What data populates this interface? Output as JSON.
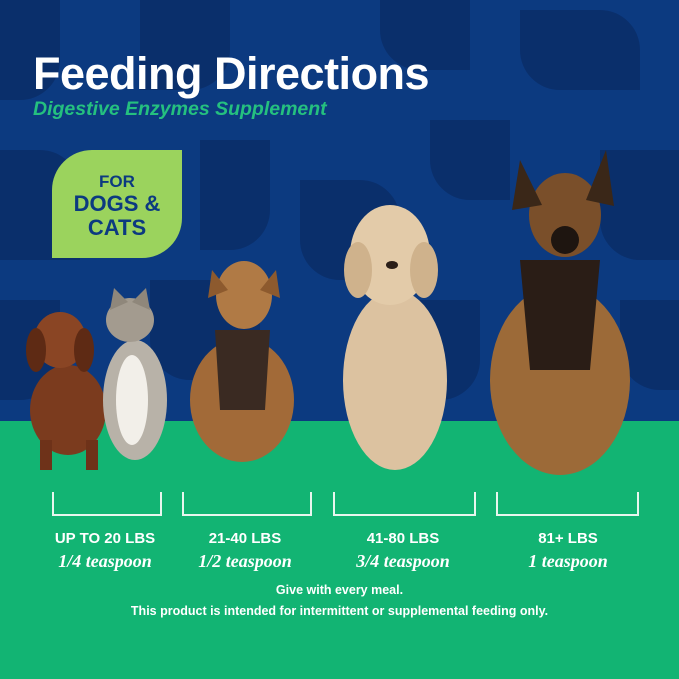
{
  "header": {
    "title": "Feeding Directions",
    "subtitle": "Digestive Enzymes Supplement"
  },
  "badge": {
    "line1": "FOR",
    "line2": "DOGS &",
    "line3": "CATS"
  },
  "colors": {
    "background": "#0c3a80",
    "pattern": "#0a2f6b",
    "ground": "#12b473",
    "subtitle": "#25c07f",
    "badge": "#9bd35d"
  },
  "dosage": [
    {
      "weight": "UP TO 20 LBS",
      "amount": "1/4 teaspoon"
    },
    {
      "weight": "21-40 LBS",
      "amount": "1/2 teaspoon"
    },
    {
      "weight": "41-80 LBS",
      "amount": "3/4 teaspoon"
    },
    {
      "weight": "81+ LBS",
      "amount": "1 teaspoon"
    }
  ],
  "footer": {
    "line1": "Give with every meal.",
    "line2": "This product is intended for intermittent or supplemental feeding only."
  }
}
